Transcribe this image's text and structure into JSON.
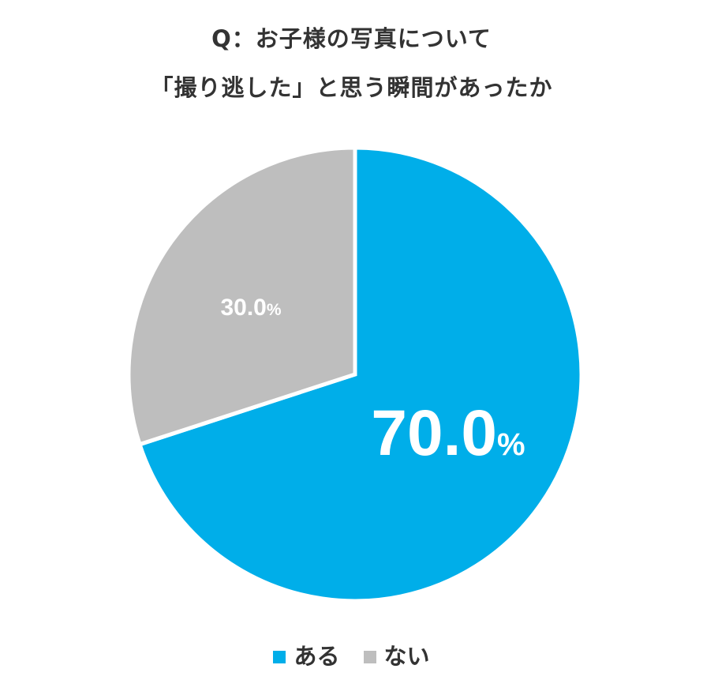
{
  "title": {
    "line1": "Q：お子様の写真について",
    "line2": "「撮り逃した」と思う瞬間があったか"
  },
  "chart_data": {
    "type": "pie",
    "categories": [
      "ある",
      "ない"
    ],
    "values": [
      70.0,
      30.0
    ],
    "data_labels": [
      {
        "number": "70.0",
        "unit": "%"
      },
      {
        "number": "30.0",
        "unit": "%"
      }
    ],
    "colors": [
      "#00aee9",
      "#bebebe"
    ],
    "start": "12 o'clock, clockwise",
    "legend_position": "bottom"
  },
  "legend": {
    "items": [
      {
        "label": "ある",
        "color": "#00aee9"
      },
      {
        "label": "ない",
        "color": "#bebebe"
      }
    ]
  }
}
